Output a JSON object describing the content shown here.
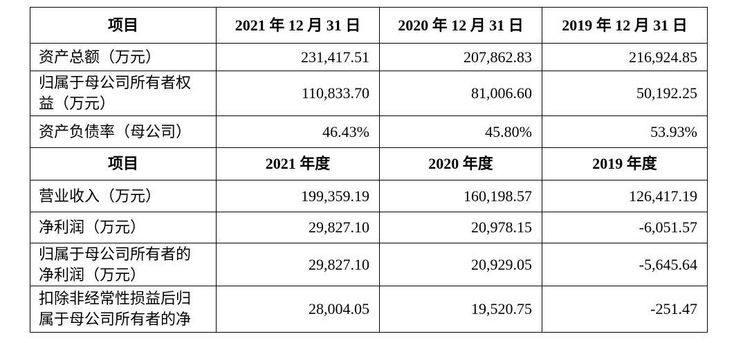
{
  "sections": [
    {
      "header": [
        "项目",
        "2021 年 12 月 31 日",
        "2020 年 12 月 31 日",
        "2019 年 12 月 31 日"
      ],
      "rows": [
        [
          "资产总额（万元）",
          "231,417.51",
          "207,862.83",
          "216,924.85"
        ],
        [
          "归属于母公司所有者权益（万元）",
          "110,833.70",
          "81,006.60",
          "50,192.25"
        ],
        [
          "资产负债率（母公司）",
          "46.43%",
          "45.80%",
          "53.93%"
        ]
      ]
    },
    {
      "header": [
        "项目",
        "2021 年度",
        "2020 年度",
        "2019 年度"
      ],
      "rows": [
        [
          "营业收入（万元）",
          "199,359.19",
          "160,198.57",
          "126,417.19"
        ],
        [
          "净利润（万元）",
          "29,827.10",
          "20,978.15",
          "-6,051.57"
        ],
        [
          "归属于母公司所有者的净利润（万元）",
          "29,827.10",
          "20,929.05",
          "-5,645.64"
        ],
        [
          "扣除非经常性损益后归属于母公司所有者的净",
          "28,004.05",
          "19,520.75",
          "-251.47"
        ]
      ]
    }
  ]
}
